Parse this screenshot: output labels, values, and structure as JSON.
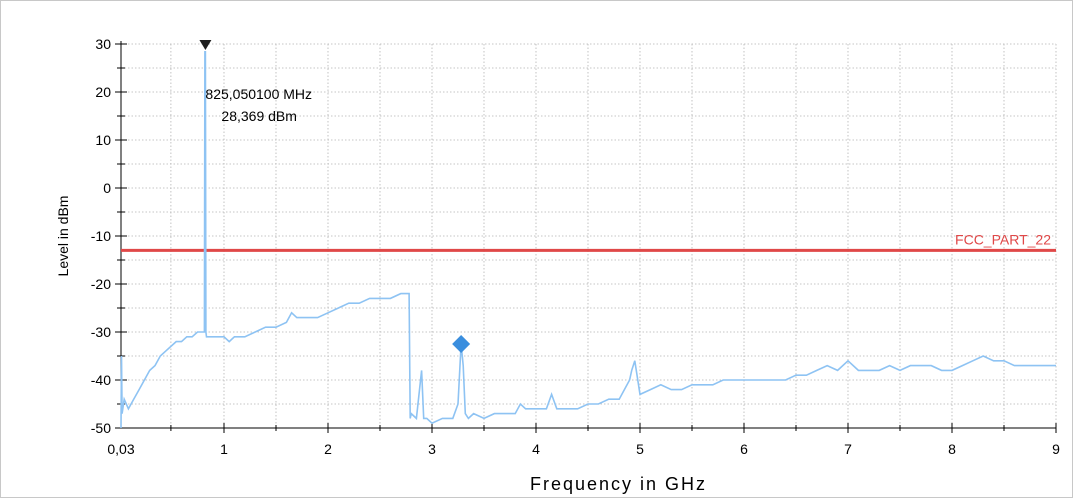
{
  "chart_data": {
    "type": "line",
    "xlabel": "Frequency in GHz",
    "ylabel": "Level in dBm",
    "xlim": [
      0.03,
      9
    ],
    "ylim": [
      -50,
      30
    ],
    "x_ticks": [
      0.03,
      1,
      2,
      3,
      4,
      5,
      6,
      7,
      8,
      9
    ],
    "x_tick_labels": [
      "0,03",
      "1",
      "2",
      "3",
      "4",
      "5",
      "6",
      "7",
      "8",
      "9"
    ],
    "y_ticks": [
      -50,
      -40,
      -30,
      -20,
      -10,
      0,
      10,
      20,
      30
    ],
    "y_tick_labels": [
      "-50",
      "-40",
      "-30",
      "-20",
      "-10",
      "0",
      "10",
      "20",
      "30"
    ],
    "grid": true,
    "colors": {
      "trace": "#8ec3f3",
      "limit": "#e04848",
      "marker": "#1e1e1e",
      "peak": "#3a8ede",
      "grid": "#b4b4b4"
    },
    "series": [
      {
        "x": [
          0.03,
          0.035,
          0.04,
          0.06,
          0.08,
          0.1,
          0.15,
          0.2,
          0.25,
          0.3,
          0.35,
          0.4,
          0.45,
          0.5,
          0.55,
          0.6,
          0.65,
          0.7,
          0.75,
          0.8,
          0.815,
          0.82,
          0.825,
          0.83,
          0.835,
          0.85,
          0.9,
          0.95,
          1.0,
          1.05,
          1.1,
          1.2,
          1.3,
          1.4,
          1.5,
          1.6,
          1.65,
          1.7,
          1.8,
          1.9,
          2.0,
          2.1,
          2.2,
          2.3,
          2.4,
          2.5,
          2.6,
          2.7,
          2.78,
          2.79,
          2.8,
          2.85,
          2.9,
          2.92,
          2.95,
          3.0,
          3.1,
          3.2,
          3.25,
          3.28,
          3.3,
          3.32,
          3.35,
          3.4,
          3.5,
          3.6,
          3.7,
          3.8,
          3.85,
          3.9,
          4.0,
          4.1,
          4.15,
          4.2,
          4.3,
          4.4,
          4.5,
          4.6,
          4.7,
          4.8,
          4.9,
          4.92,
          4.95,
          5.0,
          5.1,
          5.2,
          5.3,
          5.4,
          5.5,
          5.6,
          5.7,
          5.8,
          5.9,
          6.0,
          6.2,
          6.4,
          6.5,
          6.6,
          6.7,
          6.8,
          6.9,
          7.0,
          7.1,
          7.2,
          7.3,
          7.4,
          7.5,
          7.6,
          7.7,
          7.8,
          7.9,
          8.0,
          8.1,
          8.2,
          8.3,
          8.4,
          8.5,
          8.6,
          8.7,
          8.8,
          8.9,
          9.0
        ],
        "values": [
          -50,
          -35,
          -47,
          -44,
          -45,
          -46,
          -44,
          -42,
          -40,
          -38,
          -37,
          -35,
          -34,
          -33,
          -32,
          -32,
          -31,
          -31,
          -30,
          -30,
          -30,
          28.369,
          28.369,
          -30,
          -31,
          -31,
          -31,
          -31,
          -31,
          -32,
          -31,
          -31,
          -30,
          -29,
          -29,
          -28,
          -26,
          -27,
          -27,
          -27,
          -26,
          -25,
          -24,
          -24,
          -23,
          -23,
          -23,
          -22,
          -22,
          -48,
          -47,
          -48,
          -38,
          -48,
          -48,
          -49,
          -48,
          -48,
          -45,
          -32.5,
          -37,
          -47,
          -48,
          -47,
          -48,
          -47,
          -47,
          -47,
          -45,
          -46,
          -46,
          -46,
          -43,
          -46,
          -46,
          -46,
          -45,
          -45,
          -44,
          -44,
          -40,
          -38,
          -36,
          -43,
          -42,
          -41,
          -42,
          -42,
          -41,
          -41,
          -41,
          -40,
          -40,
          -40,
          -40,
          -40,
          -39,
          -39,
          -38,
          -37,
          -38,
          -36,
          -38,
          -38,
          -38,
          -37,
          -38,
          -37,
          -37,
          -37,
          -38,
          -38,
          -37,
          -36,
          -35,
          -36,
          -36,
          -37,
          -37,
          -37,
          -37,
          -37
        ]
      }
    ],
    "limit_line": {
      "label": "FCC_PART_22",
      "y": -13
    },
    "marker": {
      "x": 0.825,
      "y": 28.369,
      "freq_label": "825,050100 MHz",
      "level_label": "28,369 dBm"
    },
    "peak_diamond": {
      "x": 3.28,
      "y": -32.5
    }
  }
}
